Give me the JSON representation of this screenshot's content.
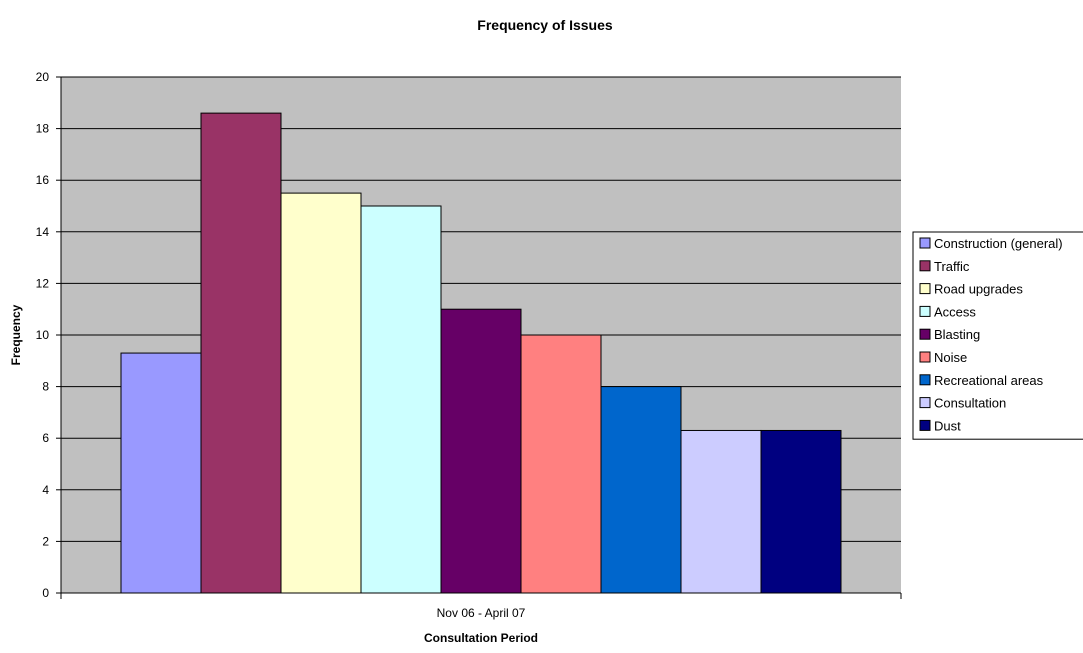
{
  "chart_data": {
    "type": "bar",
    "title": "Frequency of Issues",
    "xlabel": "Consultation Period",
    "ylabel": "Frequency",
    "categories": [
      "Nov 06 - April 07"
    ],
    "ylim": [
      0,
      20
    ],
    "yticks": [
      0,
      2,
      4,
      6,
      8,
      10,
      12,
      14,
      16,
      18,
      20
    ],
    "grid": true,
    "legend_position": "right",
    "plot_background": "#c0c0c0",
    "series": [
      {
        "name": "Construction (general)",
        "values": [
          9.3
        ],
        "color": "#9999ff"
      },
      {
        "name": "Traffic",
        "values": [
          18.6
        ],
        "color": "#993366"
      },
      {
        "name": "Road upgrades",
        "values": [
          15.5
        ],
        "color": "#ffffcc"
      },
      {
        "name": "Access",
        "values": [
          15
        ],
        "color": "#ccffff"
      },
      {
        "name": "Blasting",
        "values": [
          11
        ],
        "color": "#660066"
      },
      {
        "name": "Noise",
        "values": [
          10
        ],
        "color": "#ff8080"
      },
      {
        "name": "Recreational areas",
        "values": [
          8
        ],
        "color": "#0066cc"
      },
      {
        "name": "Consultation",
        "values": [
          6.3
        ],
        "color": "#ccccff"
      },
      {
        "name": "Dust",
        "values": [
          6.3
        ],
        "color": "#000080"
      }
    ]
  }
}
